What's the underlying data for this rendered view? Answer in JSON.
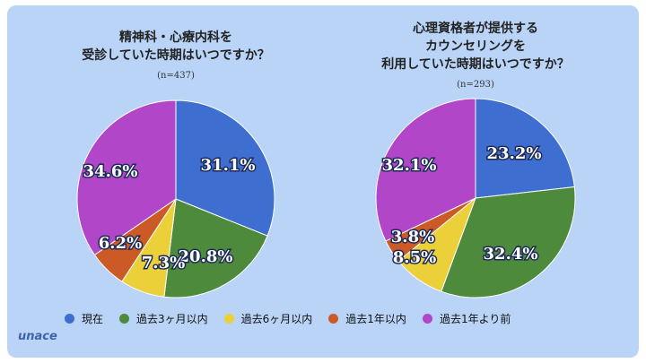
{
  "brand": {
    "logo_text": "unace"
  },
  "legend": [
    {
      "label": "現在",
      "color": "#3e6fd0"
    },
    {
      "label": "過去3ヶ月以内",
      "color": "#4e8a3b"
    },
    {
      "label": "過去6ヶ月以内",
      "color": "#ecd03a"
    },
    {
      "label": "過去1年以内",
      "color": "#cc5a26"
    },
    {
      "label": "過去1年より前",
      "color": "#b146c8"
    }
  ],
  "chart_data": [
    {
      "type": "pie",
      "title_lines": [
        "精神科・心療内科を",
        "受診していた時期はいつですか？"
      ],
      "sample_size": "(n=437)",
      "categories": [
        "現在",
        "過去3ヶ月以内",
        "過去6ヶ月以内",
        "過去1年以内",
        "過去1年より前"
      ],
      "values": [
        31.1,
        20.8,
        7.3,
        6.2,
        34.6
      ],
      "labels": [
        "31.1%",
        "20.8%",
        "7.3%",
        "6.2%",
        "34.6%"
      ]
    },
    {
      "type": "pie",
      "title_lines": [
        "心理資格者が提供する",
        "カウンセリングを",
        "利用していた時期はいつですか？"
      ],
      "sample_size": "(n=293)",
      "categories": [
        "現在",
        "過去3ヶ月以内",
        "過去6ヶ月以内",
        "過去1年以内",
        "過去1年より前"
      ],
      "values": [
        23.2,
        32.4,
        8.5,
        3.8,
        32.1
      ],
      "labels": [
        "23.2%",
        "32.4%",
        "8.5%",
        "3.8%",
        "32.1%"
      ]
    }
  ]
}
